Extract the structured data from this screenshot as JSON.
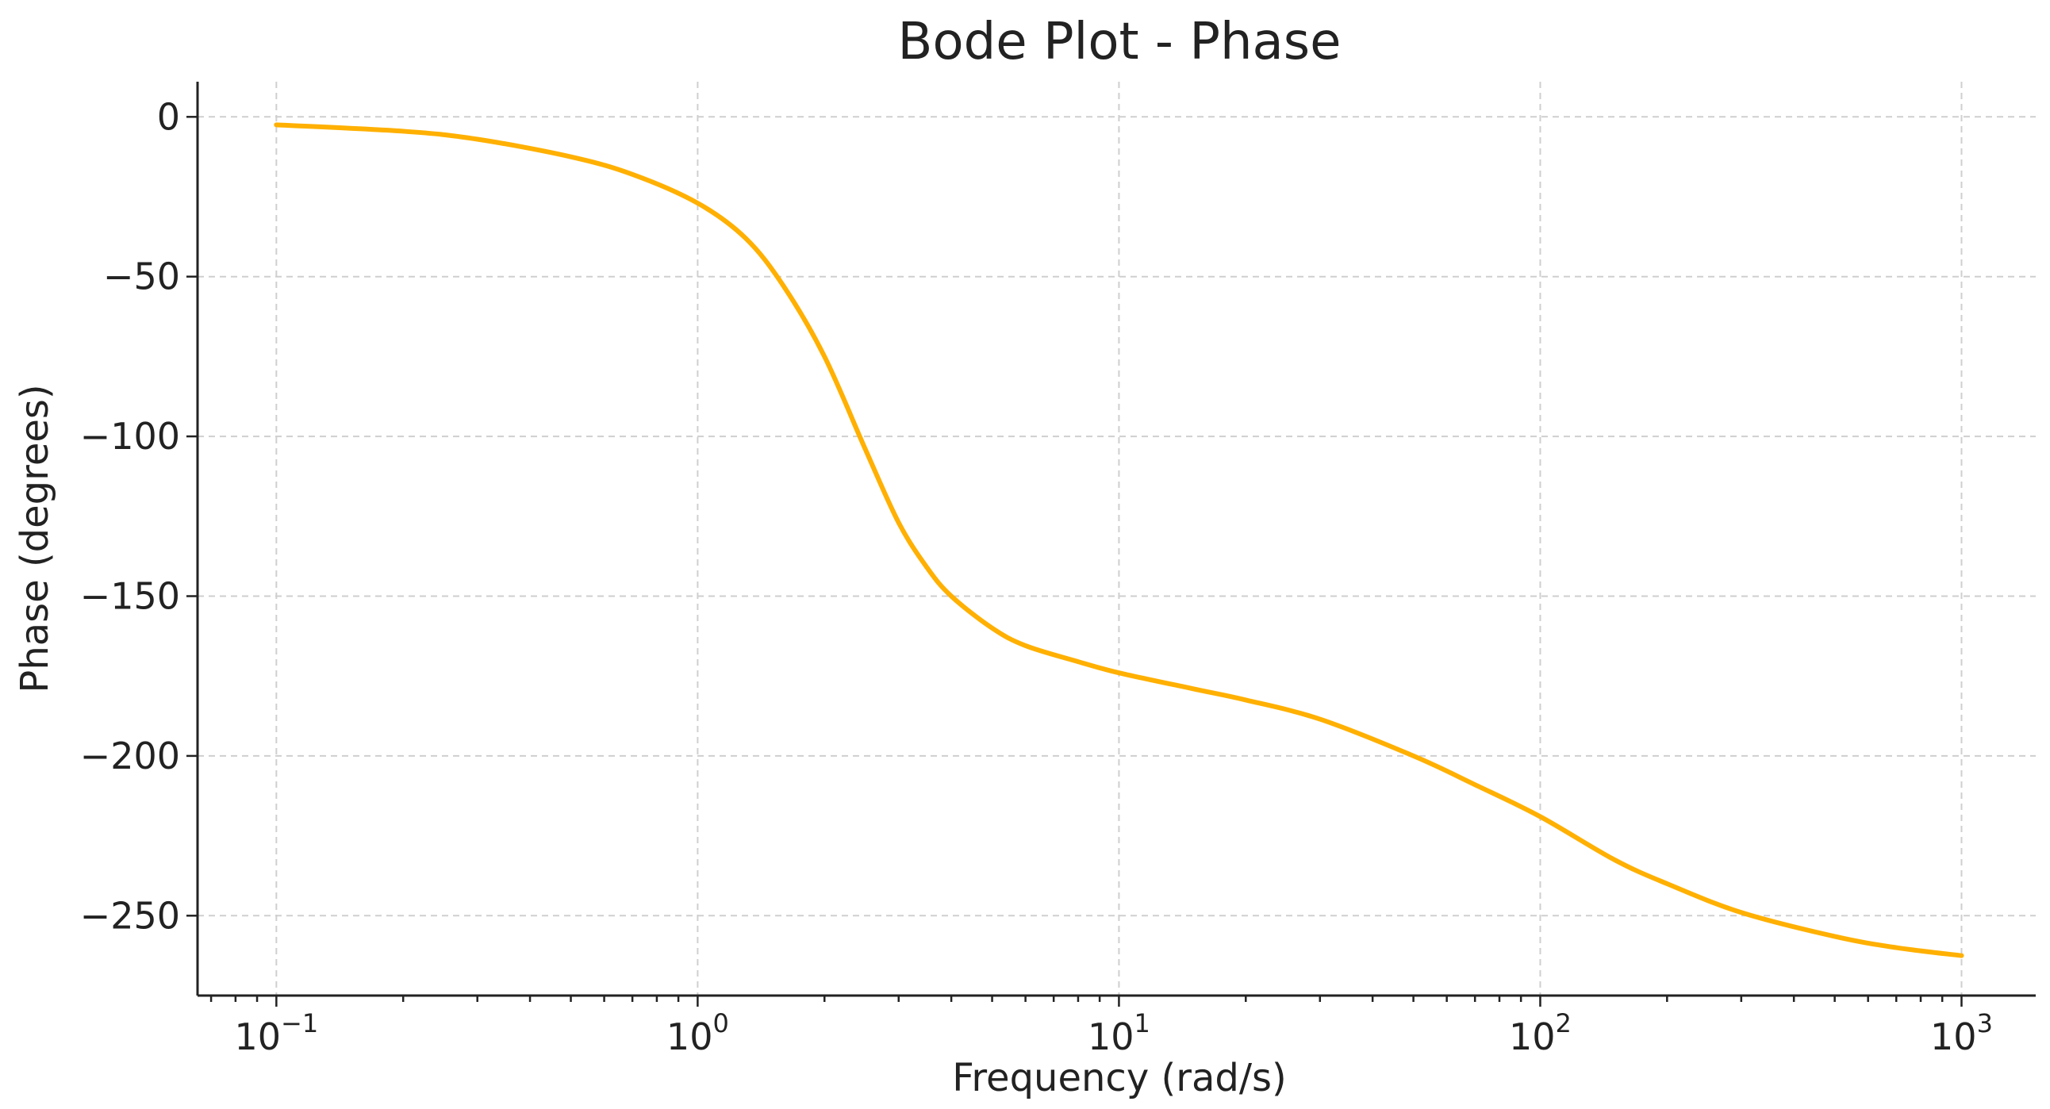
{
  "chart_data": {
    "type": "line",
    "title": "Bode Plot - Phase",
    "xlabel": "Frequency (rad/s)",
    "ylabel": "Phase (degrees)",
    "xscale": "log",
    "xlim": [
      0.065,
      1500
    ],
    "ylim": [
      -275,
      11
    ],
    "grid": true,
    "x_ticks": [
      {
        "value": 0.1,
        "base": "10",
        "exp": "−1"
      },
      {
        "value": 1,
        "base": "10",
        "exp": "0"
      },
      {
        "value": 10,
        "base": "10",
        "exp": "1"
      },
      {
        "value": 100,
        "base": "10",
        "exp": "2"
      },
      {
        "value": 1000,
        "base": "10",
        "exp": "3"
      }
    ],
    "y_ticks": [
      {
        "value": 0,
        "label": "0"
      },
      {
        "value": -50,
        "label": "−50"
      },
      {
        "value": -100,
        "label": "−100"
      },
      {
        "value": -150,
        "label": "−150"
      },
      {
        "value": -200,
        "label": "−200"
      },
      {
        "value": -250,
        "label": "−250"
      }
    ],
    "series": [
      {
        "name": "Phase",
        "color": "#FFB000",
        "x": [
          0.1,
          0.2,
          0.3,
          0.5,
          0.7,
          1.0,
          1.3,
          1.6,
          2.0,
          2.5,
          3.0,
          3.5,
          4.0,
          5.0,
          6.0,
          8.0,
          10,
          15,
          20,
          30,
          50,
          70,
          100,
          150,
          200,
          300,
          500,
          700,
          1000
        ],
        "values": [
          -2.5,
          -4.5,
          -7,
          -12.5,
          -18,
          -27,
          -38,
          -53,
          -75,
          -104,
          -127,
          -141,
          -150,
          -160,
          -165.5,
          -170.5,
          -174,
          -179,
          -182.5,
          -188.5,
          -200,
          -209,
          -219,
          -232.5,
          -240,
          -249,
          -256.5,
          -260,
          -262.5
        ]
      }
    ]
  }
}
